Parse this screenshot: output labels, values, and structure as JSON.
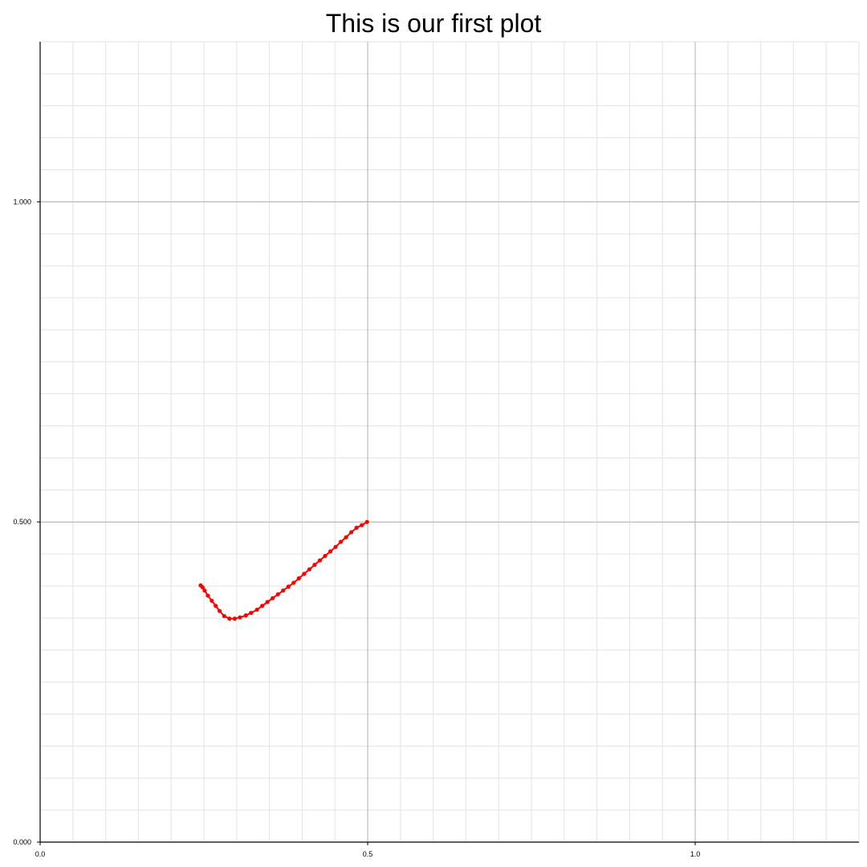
{
  "chart_data": {
    "type": "line",
    "title": "This is our first plot",
    "xlabel": "",
    "ylabel": "",
    "xlim": [
      0,
      1.25
    ],
    "ylim": [
      0,
      1.25
    ],
    "x_ticks": [
      {
        "value": 0,
        "label": "0.0"
      },
      {
        "value": 0.5,
        "label": "0.5"
      },
      {
        "value": 1.0,
        "label": "1.0"
      }
    ],
    "y_ticks": [
      {
        "value": 0,
        "label": "0.000"
      },
      {
        "value": 0.5,
        "label": "0.500"
      },
      {
        "value": 1.0,
        "label": "1.000"
      }
    ],
    "minor_grid_step": 0.05,
    "grid": true,
    "legend": false,
    "series": [
      {
        "color": "#ff0000",
        "marker": "circle",
        "x": [
          0.245,
          0.248,
          0.251,
          0.256,
          0.262,
          0.268,
          0.274,
          0.281,
          0.289,
          0.297,
          0.305,
          0.314,
          0.322,
          0.331,
          0.339,
          0.347,
          0.355,
          0.363,
          0.371,
          0.379,
          0.387,
          0.395,
          0.403,
          0.411,
          0.419,
          0.427,
          0.435,
          0.443,
          0.451,
          0.459,
          0.467,
          0.475,
          0.483,
          0.491,
          0.499
        ],
        "y": [
          0.401,
          0.398,
          0.393,
          0.385,
          0.377,
          0.369,
          0.361,
          0.353,
          0.349,
          0.349,
          0.351,
          0.354,
          0.358,
          0.363,
          0.369,
          0.375,
          0.381,
          0.387,
          0.393,
          0.399,
          0.405,
          0.412,
          0.419,
          0.426,
          0.433,
          0.44,
          0.447,
          0.454,
          0.461,
          0.469,
          0.476,
          0.484,
          0.491,
          0.495,
          0.5
        ]
      }
    ]
  }
}
